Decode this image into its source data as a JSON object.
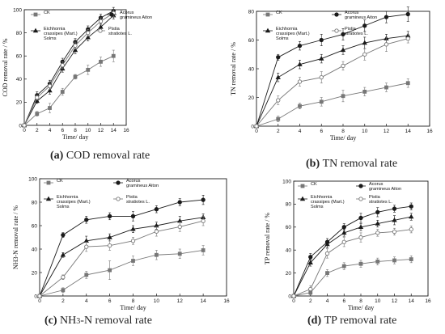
{
  "colors": {
    "ink": "#1a1a1a",
    "series_gray": "#777777",
    "open_fill": "#ffffff"
  },
  "chart_data": [
    {
      "id": "cod",
      "type": "line",
      "caption_letter": "(a)",
      "caption_text": "COD removal rate",
      "xlabel": "Time/ day",
      "ylabel": "COD removal rate / %",
      "xlim": [
        0,
        16
      ],
      "ylim": [
        0,
        100
      ],
      "xticks": [
        0,
        2,
        4,
        6,
        8,
        10,
        12,
        14,
        16
      ],
      "yticks": [
        0,
        20,
        40,
        60,
        80,
        100
      ],
      "x": [
        0,
        2,
        4,
        6,
        8,
        10,
        12,
        14
      ],
      "series": [
        {
          "name": "CK",
          "marker": "square-filled",
          "values": [
            0,
            10,
            15,
            29,
            42,
            48,
            55,
            60
          ],
          "err": [
            0,
            2,
            4,
            3,
            2,
            4,
            4,
            5
          ]
        },
        {
          "name": "Acorus gramineus Aiton",
          "marker": "circle-filled",
          "values": [
            0,
            26,
            36,
            55,
            72,
            83,
            93,
            99
          ],
          "err": [
            0,
            3,
            3,
            3,
            3,
            3,
            3,
            3
          ]
        },
        {
          "name": "Eichhornia crassipes (Mart.) Solms",
          "marker": "triangle-filled",
          "values": [
            0,
            21,
            30,
            49,
            65,
            76,
            85,
            95
          ],
          "err": [
            0,
            2,
            3,
            3,
            3,
            3,
            3,
            3
          ]
        },
        {
          "name": "Pistia stratiotes L.",
          "marker": "circle-open",
          "values": [
            0,
            24,
            34,
            52,
            69,
            80,
            90,
            97
          ],
          "err": [
            0,
            2,
            3,
            3,
            3,
            3,
            3,
            3
          ]
        }
      ]
    },
    {
      "id": "tn",
      "type": "line",
      "caption_letter": "(b)",
      "caption_text": "TN removal rate",
      "xlabel": "Time/ day",
      "ylabel": "TN removal rate / %",
      "xlim": [
        0,
        16
      ],
      "ylim": [
        0,
        80
      ],
      "xticks": [
        0,
        2,
        4,
        6,
        8,
        10,
        12,
        14,
        16
      ],
      "yticks": [
        0,
        20,
        40,
        60,
        80
      ],
      "x": [
        0,
        2,
        4,
        6,
        8,
        10,
        12,
        14
      ],
      "series": [
        {
          "name": "CK",
          "marker": "square-filled",
          "values": [
            0,
            5,
            14,
            17,
            21,
            24,
            27,
            30
          ],
          "err": [
            0,
            2,
            2,
            3,
            4,
            3,
            3,
            3
          ]
        },
        {
          "name": "Acorus gramineus Aiton",
          "marker": "circle-filled",
          "values": [
            0,
            48,
            56,
            60,
            64,
            70,
            76,
            78
          ],
          "err": [
            0,
            2,
            3,
            4,
            4,
            4,
            4,
            5
          ]
        },
        {
          "name": "Eichhornia crassipes (Mart.) Solms",
          "marker": "triangle-filled",
          "values": [
            0,
            34,
            43,
            47,
            53,
            58,
            61,
            63
          ],
          "err": [
            0,
            3,
            3,
            3,
            3,
            4,
            3,
            3
          ]
        },
        {
          "name": "Pistia stratiotes L.",
          "marker": "circle-open",
          "values": [
            0,
            18,
            31,
            34,
            42,
            50,
            57,
            61
          ],
          "err": [
            0,
            3,
            3,
            4,
            3,
            4,
            5,
            3
          ]
        }
      ]
    },
    {
      "id": "nh3",
      "type": "line",
      "caption_letter": "(c)",
      "caption_text": "NH3-N removal rate",
      "xlabel": "Time/ day",
      "ylabel": "NH3-N removal rate / %",
      "xlim": [
        0,
        16
      ],
      "ylim": [
        0,
        100
      ],
      "xticks": [
        0,
        2,
        4,
        6,
        8,
        10,
        12,
        14,
        16
      ],
      "yticks": [
        0,
        20,
        40,
        60,
        80,
        100
      ],
      "x": [
        0,
        2,
        4,
        6,
        8,
        10,
        12,
        14
      ],
      "series": [
        {
          "name": "CK",
          "marker": "square-filled",
          "values": [
            0,
            5,
            18,
            22,
            30,
            35,
            36,
            39
          ],
          "err": [
            0,
            2,
            3,
            8,
            4,
            4,
            4,
            4
          ]
        },
        {
          "name": "Acorus gramineus Aiton",
          "marker": "circle-filled",
          "values": [
            0,
            52,
            65,
            68,
            68,
            74,
            80,
            82
          ],
          "err": [
            0,
            2,
            3,
            3,
            4,
            3,
            3,
            4
          ]
        },
        {
          "name": "Eichhornia crassipes (Mart.) Solms",
          "marker": "triangle-filled",
          "values": [
            0,
            35,
            47,
            50,
            57,
            60,
            64,
            67
          ],
          "err": [
            0,
            2,
            4,
            3,
            3,
            3,
            4,
            3
          ]
        },
        {
          "name": "Pistia stratiotes L.",
          "marker": "circle-open",
          "values": [
            0,
            16,
            42,
            43,
            47,
            55,
            59,
            64
          ],
          "err": [
            0,
            2,
            4,
            4,
            3,
            4,
            4,
            4
          ]
        }
      ]
    },
    {
      "id": "tp",
      "type": "line",
      "caption_letter": "(d)",
      "caption_text": "TP removal rate",
      "xlabel": "Time/ day",
      "ylabel": "TP removal rate / %",
      "xlim": [
        0,
        16
      ],
      "ylim": [
        0,
        100
      ],
      "xticks": [
        0,
        2,
        4,
        6,
        8,
        10,
        12,
        14,
        16
      ],
      "yticks": [
        0,
        20,
        40,
        60,
        80,
        100
      ],
      "x": [
        0,
        2,
        4,
        6,
        8,
        10,
        12,
        14
      ],
      "series": [
        {
          "name": "CK",
          "marker": "square-filled",
          "values": [
            0,
            3,
            20,
            26,
            28,
            30,
            31,
            32
          ],
          "err": [
            0,
            2,
            3,
            3,
            3,
            3,
            3,
            3
          ]
        },
        {
          "name": "Acorus gramineus Aiton",
          "marker": "circle-filled",
          "values": [
            0,
            34,
            47,
            60,
            68,
            73,
            76,
            78
          ],
          "err": [
            0,
            3,
            3,
            3,
            4,
            4,
            3,
            3
          ]
        },
        {
          "name": "Eichhornia crassipes (Mart.) Solms",
          "marker": "triangle-filled",
          "values": [
            0,
            29,
            45,
            55,
            60,
            63,
            66,
            69
          ],
          "err": [
            0,
            3,
            3,
            3,
            3,
            3,
            4,
            3
          ]
        },
        {
          "name": "Pistia stratiotes L.",
          "marker": "circle-open",
          "values": [
            0,
            6,
            37,
            47,
            51,
            55,
            56,
            58
          ],
          "err": [
            0,
            3,
            4,
            4,
            4,
            3,
            3,
            3
          ]
        }
      ]
    }
  ]
}
